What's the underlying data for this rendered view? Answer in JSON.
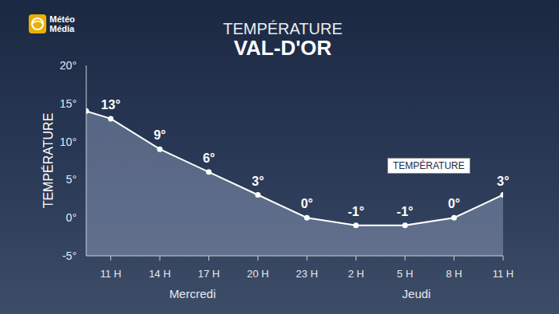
{
  "chart_data": {
    "type": "area",
    "logo": [
      "Météo",
      "Média"
    ],
    "subtitle": "TEMPÉRATURE",
    "title": "VAL-D'OR",
    "y_label": "TEMPÉRATURE",
    "x": [
      9.5,
      11,
      14,
      17,
      20,
      23,
      26,
      29,
      32,
      35
    ],
    "xlim": [
      9.5,
      35
    ],
    "xticks": [
      {
        "value": 11,
        "label": "11 H"
      },
      {
        "value": 14,
        "label": "14 H"
      },
      {
        "value": 17,
        "label": "17 H"
      },
      {
        "value": 20,
        "label": "20 H"
      },
      {
        "value": 23,
        "label": "23 H"
      },
      {
        "value": 26,
        "label": "2 H"
      },
      {
        "value": 29,
        "label": "5 H"
      },
      {
        "value": 32,
        "label": "8 H"
      },
      {
        "value": 35,
        "label": "11 H"
      }
    ],
    "annotations": [
      {
        "text": "Mercredi",
        "x": 16
      },
      {
        "text": "Jeudi",
        "x": 29.7
      }
    ],
    "series": [
      {
        "name": "TEMPÉRATURE",
        "color": "#ffffff",
        "values": [
          14,
          13,
          9,
          6,
          3,
          0,
          -1,
          -1,
          0,
          3
        ],
        "value_labels": [
          null,
          "13°",
          "9°",
          "6°",
          "3°",
          "0°",
          "-1°",
          "-1°",
          "0°",
          "3°"
        ]
      }
    ],
    "ylim": [
      -5,
      20
    ],
    "yticks": [
      {
        "value": -5,
        "label": "-5°"
      },
      {
        "value": 0,
        "label": "0°"
      },
      {
        "value": 5,
        "label": "5°"
      },
      {
        "value": 10,
        "label": "10°"
      },
      {
        "value": 15,
        "label": "15°"
      },
      {
        "value": 20,
        "label": "20°"
      }
    ],
    "grid": false,
    "legend": "right",
    "data_labels": true,
    "marker": "circle",
    "line_style": "solid"
  }
}
